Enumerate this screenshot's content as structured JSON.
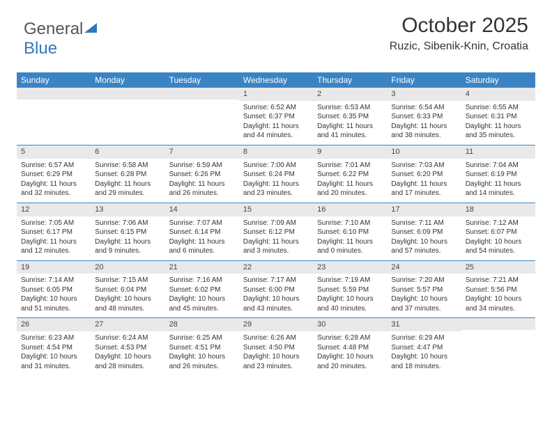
{
  "logo": {
    "text1": "General",
    "text2": "Blue"
  },
  "title": "October 2025",
  "location": "Ruzic, Sibenik-Knin, Croatia",
  "colors": {
    "header_bg": "#3b84c4",
    "header_text": "#ffffff",
    "daynum_bg": "#e9e9e9",
    "rule": "#3b84c4",
    "text": "#333333",
    "logo_gray": "#555555",
    "logo_blue": "#2f78bd",
    "background": "#ffffff"
  },
  "fonts": {
    "title_pt": 30,
    "location_pt": 16,
    "header_pt": 12,
    "daynum_pt": 11,
    "body_pt": 10
  },
  "day_labels": [
    "Sunday",
    "Monday",
    "Tuesday",
    "Wednesday",
    "Thursday",
    "Friday",
    "Saturday"
  ],
  "weeks": [
    [
      null,
      null,
      null,
      {
        "n": "1",
        "sr": "6:52 AM",
        "ss": "6:37 PM",
        "dl": "11 hours and 44 minutes."
      },
      {
        "n": "2",
        "sr": "6:53 AM",
        "ss": "6:35 PM",
        "dl": "11 hours and 41 minutes."
      },
      {
        "n": "3",
        "sr": "6:54 AM",
        "ss": "6:33 PM",
        "dl": "11 hours and 38 minutes."
      },
      {
        "n": "4",
        "sr": "6:55 AM",
        "ss": "6:31 PM",
        "dl": "11 hours and 35 minutes."
      }
    ],
    [
      {
        "n": "5",
        "sr": "6:57 AM",
        "ss": "6:29 PM",
        "dl": "11 hours and 32 minutes."
      },
      {
        "n": "6",
        "sr": "6:58 AM",
        "ss": "6:28 PM",
        "dl": "11 hours and 29 minutes."
      },
      {
        "n": "7",
        "sr": "6:59 AM",
        "ss": "6:26 PM",
        "dl": "11 hours and 26 minutes."
      },
      {
        "n": "8",
        "sr": "7:00 AM",
        "ss": "6:24 PM",
        "dl": "11 hours and 23 minutes."
      },
      {
        "n": "9",
        "sr": "7:01 AM",
        "ss": "6:22 PM",
        "dl": "11 hours and 20 minutes."
      },
      {
        "n": "10",
        "sr": "7:03 AM",
        "ss": "6:20 PM",
        "dl": "11 hours and 17 minutes."
      },
      {
        "n": "11",
        "sr": "7:04 AM",
        "ss": "6:19 PM",
        "dl": "11 hours and 14 minutes."
      }
    ],
    [
      {
        "n": "12",
        "sr": "7:05 AM",
        "ss": "6:17 PM",
        "dl": "11 hours and 12 minutes."
      },
      {
        "n": "13",
        "sr": "7:06 AM",
        "ss": "6:15 PM",
        "dl": "11 hours and 9 minutes."
      },
      {
        "n": "14",
        "sr": "7:07 AM",
        "ss": "6:14 PM",
        "dl": "11 hours and 6 minutes."
      },
      {
        "n": "15",
        "sr": "7:09 AM",
        "ss": "6:12 PM",
        "dl": "11 hours and 3 minutes."
      },
      {
        "n": "16",
        "sr": "7:10 AM",
        "ss": "6:10 PM",
        "dl": "11 hours and 0 minutes."
      },
      {
        "n": "17",
        "sr": "7:11 AM",
        "ss": "6:09 PM",
        "dl": "10 hours and 57 minutes."
      },
      {
        "n": "18",
        "sr": "7:12 AM",
        "ss": "6:07 PM",
        "dl": "10 hours and 54 minutes."
      }
    ],
    [
      {
        "n": "19",
        "sr": "7:14 AM",
        "ss": "6:05 PM",
        "dl": "10 hours and 51 minutes."
      },
      {
        "n": "20",
        "sr": "7:15 AM",
        "ss": "6:04 PM",
        "dl": "10 hours and 48 minutes."
      },
      {
        "n": "21",
        "sr": "7:16 AM",
        "ss": "6:02 PM",
        "dl": "10 hours and 45 minutes."
      },
      {
        "n": "22",
        "sr": "7:17 AM",
        "ss": "6:00 PM",
        "dl": "10 hours and 43 minutes."
      },
      {
        "n": "23",
        "sr": "7:19 AM",
        "ss": "5:59 PM",
        "dl": "10 hours and 40 minutes."
      },
      {
        "n": "24",
        "sr": "7:20 AM",
        "ss": "5:57 PM",
        "dl": "10 hours and 37 minutes."
      },
      {
        "n": "25",
        "sr": "7:21 AM",
        "ss": "5:56 PM",
        "dl": "10 hours and 34 minutes."
      }
    ],
    [
      {
        "n": "26",
        "sr": "6:23 AM",
        "ss": "4:54 PM",
        "dl": "10 hours and 31 minutes."
      },
      {
        "n": "27",
        "sr": "6:24 AM",
        "ss": "4:53 PM",
        "dl": "10 hours and 28 minutes."
      },
      {
        "n": "28",
        "sr": "6:25 AM",
        "ss": "4:51 PM",
        "dl": "10 hours and 26 minutes."
      },
      {
        "n": "29",
        "sr": "6:26 AM",
        "ss": "4:50 PM",
        "dl": "10 hours and 23 minutes."
      },
      {
        "n": "30",
        "sr": "6:28 AM",
        "ss": "4:48 PM",
        "dl": "10 hours and 20 minutes."
      },
      {
        "n": "31",
        "sr": "6:29 AM",
        "ss": "4:47 PM",
        "dl": "10 hours and 18 minutes."
      },
      null
    ]
  ],
  "labels": {
    "sunrise": "Sunrise:",
    "sunset": "Sunset:",
    "daylight": "Daylight:"
  }
}
